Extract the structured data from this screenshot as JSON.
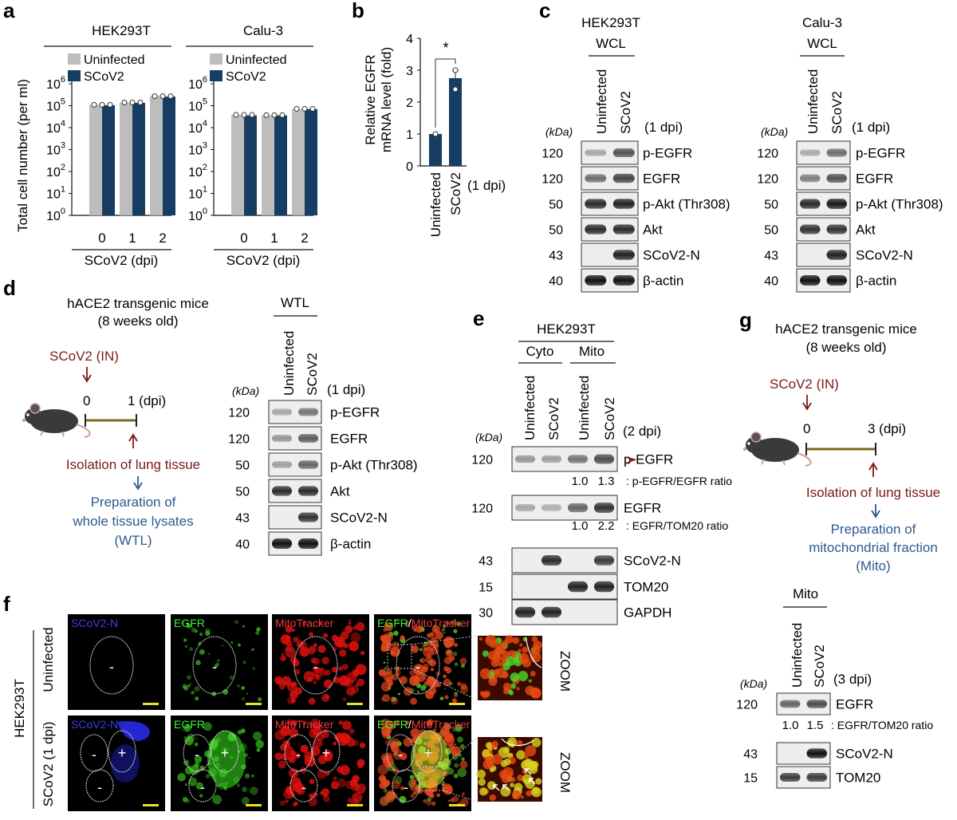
{
  "figure": {
    "panel_labels": [
      "a",
      "b",
      "c",
      "d",
      "e",
      "f",
      "g"
    ],
    "a": {
      "cells": [
        "HEK293T",
        "Calu-3"
      ],
      "legend": [
        "Uninfected",
        "SCoV2"
      ],
      "ylabel": "Total cell number (per ml)",
      "yticks": [
        "10",
        "10",
        "10",
        "10",
        "10",
        "10",
        "10"
      ],
      "yexp": [
        "0",
        "1",
        "2",
        "3",
        "4",
        "5",
        "6"
      ],
      "xticks": [
        "0",
        "1",
        "2"
      ],
      "xlabel": "SCoV2 (dpi)"
    },
    "b": {
      "ylabel_1": "Relative EGFR",
      "ylabel_2": "mRNA level (fold)",
      "yticks": [
        "0",
        "1",
        "2",
        "3",
        "4"
      ],
      "categories": [
        "Uninfected",
        "SCoV2"
      ],
      "dpi": "(1 dpi)",
      "sig": "*"
    },
    "c": {
      "cell_1": "HEK293T",
      "cell_2": "Calu-3",
      "fraction": "WCL",
      "lanes": [
        "Uninfected",
        "SCoV2"
      ],
      "dpi": "(1 dpi)",
      "kda": "(kDa)",
      "mw": [
        "120",
        "120",
        "50",
        "50",
        "43",
        "40"
      ],
      "proteins": [
        "p-EGFR",
        "EGFR",
        "p-Akt (Thr308)",
        "Akt",
        "SCoV2-N",
        "β-actin"
      ]
    },
    "d": {
      "mice_1": "hACE2 transgenic mice",
      "mice_2": "(8 weeks old)",
      "infection": "SCoV2 (IN)",
      "t0": "0",
      "t1": "1 (dpi)",
      "isolation": "Isolation of lung tissue",
      "prep_1": "Preparation of",
      "prep_2": "whole tissue lysates",
      "prep_3": "(WTL)",
      "fraction": "WTL",
      "lanes": [
        "Uninfected",
        "SCoV2"
      ],
      "dpi": "(1 dpi)",
      "kda": "(kDa)",
      "mw": [
        "120",
        "120",
        "50",
        "50",
        "43",
        "40"
      ],
      "proteins": [
        "p-EGFR",
        "EGFR",
        "p-Akt (Thr308)",
        "Akt",
        "SCoV2-N",
        "β-actin"
      ]
    },
    "e": {
      "cell": "HEK293T",
      "fractions": [
        "Cyto",
        "Mito"
      ],
      "lanes": [
        "Uninfected",
        "SCoV2",
        "Uninfected",
        "SCoV2"
      ],
      "dpi": "(2 dpi)",
      "kda": "(kDa)",
      "mw": [
        "120",
        "120",
        "43",
        "15",
        "30"
      ],
      "proteins": [
        "p-EGFR",
        "EGFR",
        "SCoV2-N",
        "TOM20",
        "GAPDH"
      ],
      "ratio1_vals": [
        "1.0",
        "1.3"
      ],
      "ratio1_label": ": p-EGFR/EGFR ratio",
      "ratio2_vals": [
        "1.0",
        "2.2"
      ],
      "ratio2_label": ": EGFR/TOM20 ratio"
    },
    "f": {
      "cell": "HEK293T",
      "rows": [
        "Uninfected",
        "SCoV2 (1 dpi)"
      ],
      "channels": [
        "SCoV2-N",
        "EGFR",
        "MitoTracker"
      ],
      "merge_a": "EGFR",
      "merge_sep": "/",
      "merge_b": "MitoTracker",
      "zoom": "ZOOM",
      "minus": "-",
      "plus": "+"
    },
    "g": {
      "mice_1": "hACE2 transgenic mice",
      "mice_2": "(8 weeks old)",
      "infection": "SCoV2 (IN)",
      "t0": "0",
      "t1": "3 (dpi)",
      "isolation": "Isolation of lung tissue",
      "prep_1": "Preparation of",
      "prep_2": "mitochondrial fraction",
      "prep_3": "(Mito)",
      "fraction": "Mito",
      "lanes": [
        "Uninfected",
        "SCoV2"
      ],
      "dpi": "(3 dpi)",
      "kda": "(kDa)",
      "mw": [
        "120",
        "43",
        "15"
      ],
      "proteins": [
        "EGFR",
        "SCoV2-N",
        "TOM20"
      ],
      "ratio_vals": [
        "1.0",
        "1.5"
      ],
      "ratio_label": ": EGFR/TOM20 ratio"
    },
    "colors": {
      "uninfected": "#bdbdbd",
      "scov2": "#173d63",
      "arrow_red": "#7a1a1a",
      "text_blue": "#2d5a8e",
      "timeline": "#7a6a1a"
    }
  },
  "chart_data": [
    {
      "type": "bar",
      "title": "HEK293T",
      "categories": [
        "0",
        "1",
        "2"
      ],
      "xlabel": "SCoV2 (dpi)",
      "ylabel": "Total cell number (per ml)",
      "yscale": "log",
      "ylim": [
        1,
        1000000
      ],
      "series": [
        {
          "name": "Uninfected",
          "values": [
            110000,
            140000,
            270000
          ]
        },
        {
          "name": "SCoV2",
          "values": [
            105000,
            135000,
            260000
          ]
        }
      ],
      "legend_position": "top-left"
    },
    {
      "type": "bar",
      "title": "Calu-3",
      "categories": [
        "0",
        "1",
        "2"
      ],
      "xlabel": "SCoV2 (dpi)",
      "ylabel": "",
      "yscale": "log",
      "ylim": [
        1,
        1000000
      ],
      "series": [
        {
          "name": "Uninfected",
          "values": [
            38000,
            37000,
            72000
          ]
        },
        {
          "name": "SCoV2",
          "values": [
            36000,
            36000,
            70000
          ]
        }
      ],
      "legend_position": "top-left"
    },
    {
      "type": "bar",
      "categories": [
        "Uninfected",
        "SCoV2"
      ],
      "ylabel": "Relative EGFR mRNA level (fold)",
      "ylim": [
        0,
        4
      ],
      "values": [
        1.0,
        2.75
      ],
      "points": [
        [
          1.0,
          1.0
        ],
        [
          3.1,
          2.4
        ]
      ],
      "annotation": "*"
    }
  ]
}
